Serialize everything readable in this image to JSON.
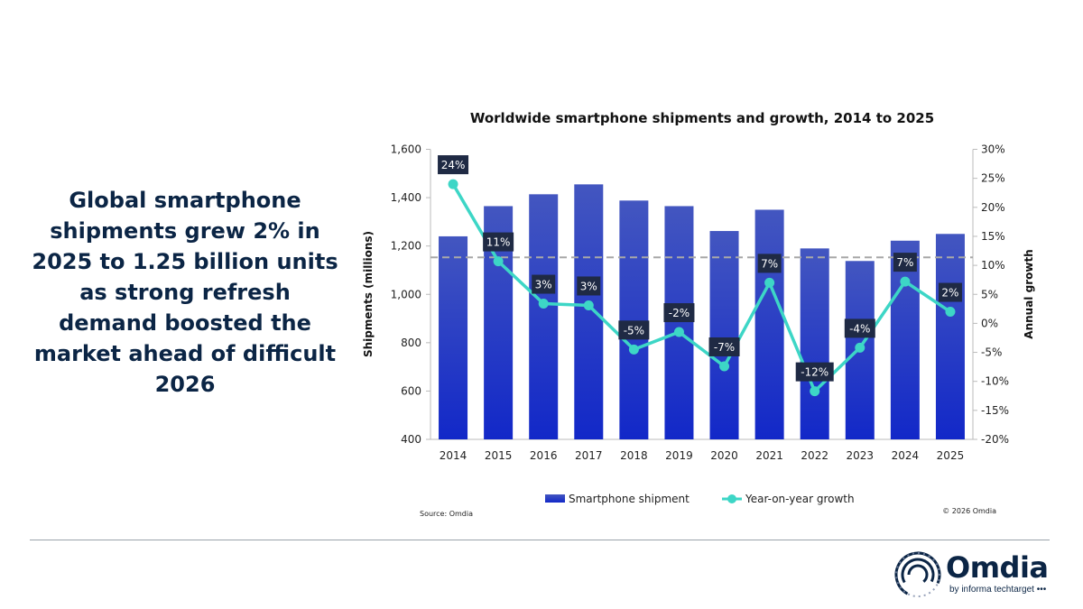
{
  "headline": "Global smartphone shipments grew 2% in 2025 to 1.25 billion units as strong refresh demand boosted the market ahead of difficult 2026",
  "source": "Source: Omdia",
  "copyright": "© 2026 Omdia",
  "logo": {
    "name": "Omdia",
    "tagline": "by informa techtarget"
  },
  "colors": {
    "bar": "#1a35c4",
    "bar_top": "#4356c0",
    "line": "#3dd6c6",
    "label_bg": "#1f2a44",
    "text": "#0b2545",
    "reference_line": "#a8a8a8"
  },
  "chart_data": {
    "type": "bar+line",
    "title": "Worldwide smartphone shipments and growth, 2014 to 2025",
    "categories": [
      "2014",
      "2015",
      "2016",
      "2017",
      "2018",
      "2019",
      "2020",
      "2021",
      "2022",
      "2023",
      "2024",
      "2025"
    ],
    "series": [
      {
        "name": "Smartphone shipment",
        "type": "bar",
        "axis": "left",
        "values": [
          1240,
          1365,
          1414,
          1455,
          1388,
          1365,
          1262,
          1350,
          1190,
          1138,
          1222,
          1250
        ]
      },
      {
        "name": "Year-on-year growth",
        "type": "line",
        "axis": "right",
        "values": [
          24,
          10.7,
          3.4,
          3.1,
          -4.5,
          -1.5,
          -7.4,
          7,
          -11.7,
          -4.2,
          7.2,
          2
        ],
        "labels": [
          "24%",
          "11%",
          "3%",
          "3%",
          "-5%",
          "-2%",
          "-7%",
          "7%",
          "-12%",
          "-4%",
          "7%",
          "2%"
        ]
      }
    ],
    "ylabel": "Shipments (millions)",
    "ylabel_right": "Annual growth",
    "ylim": [
      400,
      1600
    ],
    "yticks": [
      "400",
      "600",
      "800",
      "1,000",
      "1,200",
      "1,400",
      "1,600"
    ],
    "ylim_right": [
      -20,
      30
    ],
    "yticks_right": [
      "-20%",
      "-15%",
      "-10%",
      "-5%",
      "0%",
      "5%",
      "10%",
      "15%",
      "20%",
      "25%",
      "30%"
    ],
    "reference_line": 1153,
    "grid": false,
    "legend": "bottom"
  }
}
